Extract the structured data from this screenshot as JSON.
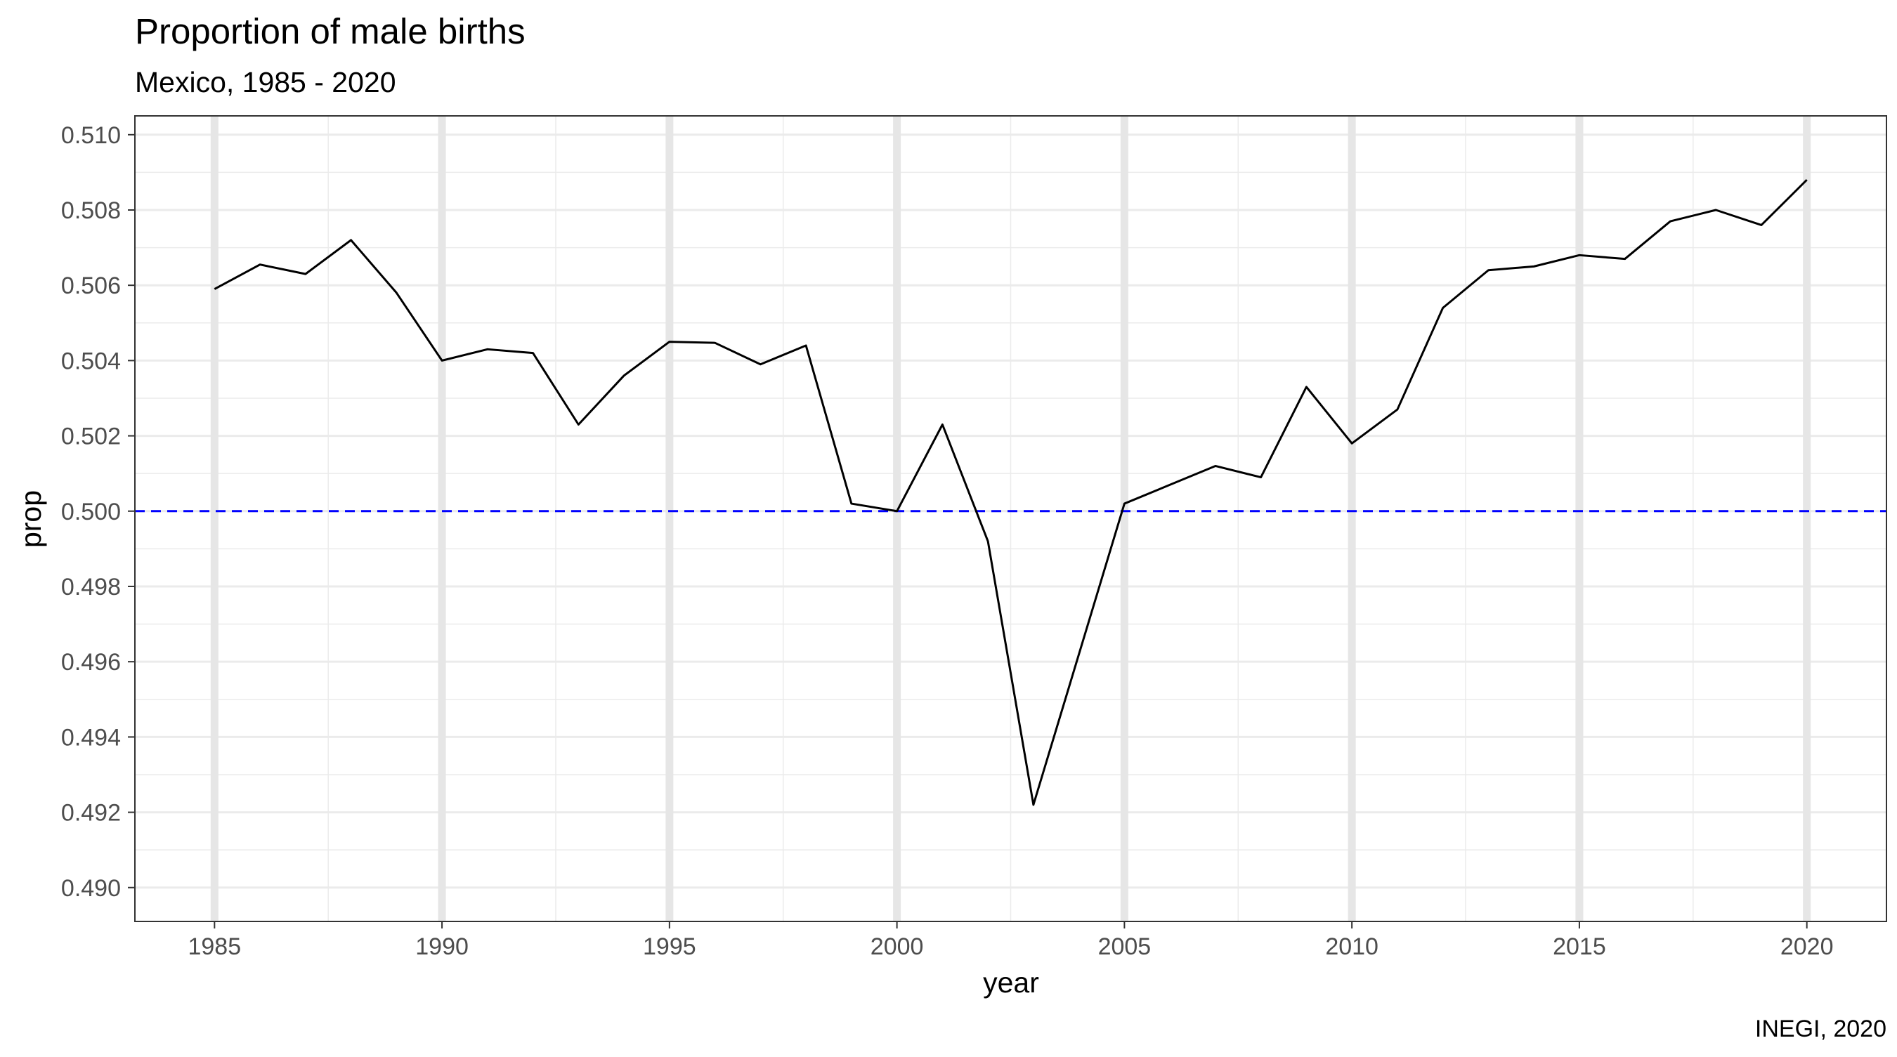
{
  "chart_data": {
    "type": "line",
    "title": "Proportion of male births",
    "subtitle": "Mexico, 1985 - 2020",
    "xlabel": "year",
    "ylabel": "prop",
    "caption": "INEGI, 2020",
    "xlim": [
      1983.25,
      2021.75
    ],
    "ylim": [
      0.4891,
      0.5105
    ],
    "x_ticks": [
      1985,
      1990,
      1995,
      2000,
      2005,
      2010,
      2015,
      2020
    ],
    "x_tick_labels": [
      "1985",
      "1990",
      "1995",
      "2000",
      "2005",
      "2010",
      "2015",
      "2020"
    ],
    "y_ticks": [
      0.49,
      0.492,
      0.494,
      0.496,
      0.498,
      0.5,
      0.502,
      0.504,
      0.506,
      0.508,
      0.51
    ],
    "y_tick_labels": [
      "0.490",
      "0.492",
      "0.494",
      "0.496",
      "0.498",
      "0.500",
      "0.502",
      "0.504",
      "0.506",
      "0.508",
      "0.510"
    ],
    "highlighted_x_gridlines": [
      1985,
      1990,
      1995,
      2000,
      2005,
      2010,
      2015,
      2020
    ],
    "grid": true,
    "x": [
      1985,
      1986,
      1987,
      1988,
      1989,
      1990,
      1991,
      1992,
      1993,
      1994,
      1995,
      1996,
      1997,
      1998,
      1999,
      2000,
      2001,
      2002,
      2003,
      2004,
      2005,
      2006,
      2007,
      2008,
      2009,
      2010,
      2011,
      2012,
      2013,
      2014,
      2015,
      2016,
      2017,
      2018,
      2019,
      2020
    ],
    "series": [
      {
        "values": [
          0.5059,
          0.50655,
          0.5063,
          0.5072,
          0.5058,
          0.504,
          0.5043,
          0.5042,
          0.5023,
          0.5036,
          0.5045,
          0.50447,
          0.5039,
          0.5044,
          0.5002,
          0.5,
          0.5023,
          0.4992,
          0.4922,
          0.4962,
          0.5002,
          0.5007,
          0.5012,
          0.5009,
          0.5033,
          0.5018,
          0.5027,
          0.5054,
          0.5064,
          0.5065,
          0.5068,
          0.5067,
          0.5077,
          0.508,
          0.5076,
          0.5088
        ],
        "color": "#000000"
      }
    ],
    "reference_line": {
      "y": 0.5,
      "color": "#0000ff",
      "style": "dashed"
    }
  }
}
